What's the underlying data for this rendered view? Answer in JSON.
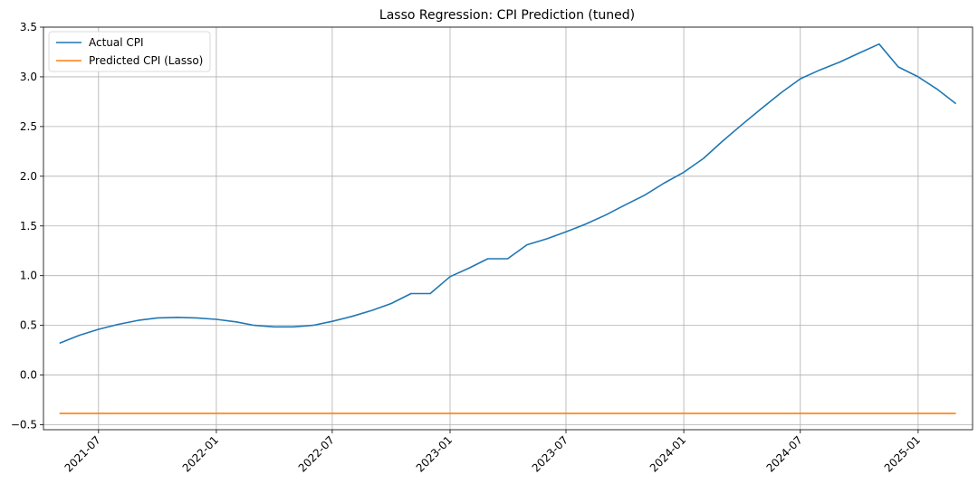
{
  "chart_data": {
    "type": "line",
    "title": "Lasso Regression: CPI Prediction (tuned)",
    "xlabel": "",
    "ylabel": "",
    "x_axis": "date",
    "xlim": [
      "2021-04-06",
      "2025-03-27"
    ],
    "ylim": [
      -0.55,
      3.5
    ],
    "x_ticks": [
      "2021-07",
      "2022-01",
      "2022-07",
      "2023-01",
      "2023-07",
      "2024-01",
      "2024-07",
      "2025-01"
    ],
    "y_ticks": [
      -0.5,
      0.0,
      0.5,
      1.0,
      1.5,
      2.0,
      2.5,
      3.0,
      3.5
    ],
    "y_tick_labels": [
      "−0.5",
      "0.0",
      "0.5",
      "1.0",
      "1.5",
      "2.0",
      "2.5",
      "3.0",
      "3.5"
    ],
    "grid": true,
    "legend_position": "top-left",
    "series": [
      {
        "name": "Actual CPI",
        "color": "#1f77b4",
        "x": [
          "2021-05-01",
          "2021-06-01",
          "2021-07-01",
          "2021-08-01",
          "2021-09-01",
          "2021-10-01",
          "2021-11-01",
          "2021-12-01",
          "2022-01-01",
          "2022-02-01",
          "2022-03-01",
          "2022-04-01",
          "2022-05-01",
          "2022-06-01",
          "2022-07-01",
          "2022-08-01",
          "2022-09-01",
          "2022-10-01",
          "2022-11-01",
          "2022-12-01",
          "2023-01-01",
          "2023-02-01",
          "2023-03-01",
          "2023-04-01",
          "2023-05-01",
          "2023-06-01",
          "2023-07-01",
          "2023-08-01",
          "2023-09-01",
          "2023-10-01",
          "2023-11-01",
          "2023-12-01",
          "2024-01-01",
          "2024-02-01",
          "2024-03-01",
          "2024-04-01",
          "2024-05-01",
          "2024-06-01",
          "2024-07-01",
          "2024-08-01",
          "2024-09-01",
          "2024-10-01",
          "2024-11-01",
          "2024-12-01",
          "2025-01-01",
          "2025-02-01",
          "2025-03-01"
        ],
        "y": [
          0.32,
          0.4,
          0.46,
          0.51,
          0.55,
          0.575,
          0.58,
          0.575,
          0.56,
          0.535,
          0.5,
          0.485,
          0.485,
          0.5,
          0.54,
          0.59,
          0.65,
          0.72,
          0.82,
          0.82,
          0.99,
          1.08,
          1.17,
          1.17,
          1.31,
          1.37,
          1.44,
          1.52,
          1.61,
          1.71,
          1.81,
          1.93,
          2.04,
          2.18,
          2.35,
          2.52,
          2.68,
          2.84,
          2.98,
          3.07,
          3.15,
          3.24,
          3.33,
          3.1,
          3.0,
          2.87,
          2.73
        ]
      },
      {
        "name": "Predicted CPI (Lasso)",
        "color": "#ff7f0e",
        "x": [
          "2021-05-01",
          "2025-03-01"
        ],
        "y": [
          -0.385,
          -0.385
        ]
      }
    ]
  }
}
